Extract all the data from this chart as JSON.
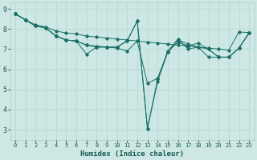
{
  "title": "",
  "xlabel": "Humidex (Indice chaleur)",
  "ylabel": "",
  "bg_color": "#cde8e4",
  "line_color": "#1a7068",
  "grid_color": "#bbdbd6",
  "xlim": [
    -0.5,
    23.5
  ],
  "ylim": [
    2.5,
    9.3
  ],
  "xticks": [
    0,
    1,
    2,
    3,
    4,
    5,
    6,
    7,
    8,
    9,
    10,
    11,
    12,
    13,
    14,
    15,
    16,
    17,
    18,
    19,
    20,
    21,
    22,
    23
  ],
  "yticks": [
    3,
    4,
    5,
    6,
    7,
    8,
    9
  ],
  "line1_x": [
    0,
    1,
    2,
    3,
    4,
    5,
    6,
    7,
    8,
    9,
    10,
    11,
    12,
    13,
    14,
    15,
    16,
    17,
    18,
    19,
    20,
    21,
    22,
    23
  ],
  "line1_y": [
    8.75,
    8.45,
    8.2,
    8.1,
    7.9,
    7.8,
    7.75,
    7.65,
    7.6,
    7.55,
    7.5,
    7.45,
    7.4,
    7.35,
    7.3,
    7.25,
    7.2,
    7.15,
    7.1,
    7.05,
    7.0,
    6.95,
    7.85,
    7.82
  ],
  "line2_x": [
    0,
    1,
    2,
    3,
    4,
    5,
    6,
    7,
    8,
    9,
    10,
    11,
    12,
    13,
    14,
    15,
    16,
    17,
    18,
    19,
    20,
    21,
    22,
    23
  ],
  "line2_y": [
    8.75,
    8.45,
    8.15,
    8.05,
    7.65,
    7.45,
    7.4,
    7.2,
    7.15,
    7.1,
    7.1,
    7.4,
    8.4,
    3.05,
    5.4,
    6.85,
    7.35,
    7.15,
    7.3,
    7.0,
    6.6,
    6.6,
    7.05,
    7.8
  ],
  "line3_x": [
    0,
    1,
    2,
    3,
    4,
    5,
    6,
    7,
    8,
    9,
    10,
    11,
    12,
    13,
    14,
    15,
    16,
    17,
    18,
    19,
    20,
    21,
    22,
    23
  ],
  "line3_y": [
    8.75,
    8.45,
    8.15,
    8.05,
    7.65,
    7.45,
    7.4,
    7.2,
    7.1,
    7.1,
    7.1,
    7.4,
    8.4,
    3.05,
    5.5,
    6.9,
    7.5,
    7.0,
    7.1,
    6.6,
    6.6,
    6.6,
    7.05,
    7.8
  ],
  "line4_x": [
    0,
    1,
    2,
    3,
    4,
    5,
    6,
    7,
    8,
    9,
    10,
    11,
    12,
    13,
    14,
    15,
    16,
    17,
    18,
    19,
    20,
    21,
    22,
    23
  ],
  "line4_y": [
    8.75,
    8.45,
    8.15,
    8.05,
    7.65,
    7.45,
    7.4,
    6.75,
    7.1,
    7.1,
    7.05,
    6.9,
    7.4,
    5.3,
    5.55,
    6.85,
    7.45,
    7.25,
    7.1,
    7.0,
    6.6,
    6.6,
    7.05,
    7.8
  ]
}
